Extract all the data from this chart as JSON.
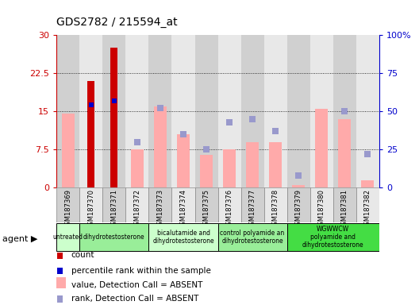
{
  "title": "GDS2782 / 215594_at",
  "samples": [
    "GSM187369",
    "GSM187370",
    "GSM187371",
    "GSM187372",
    "GSM187373",
    "GSM187374",
    "GSM187375",
    "GSM187376",
    "GSM187377",
    "GSM187378",
    "GSM187379",
    "GSM187380",
    "GSM187381",
    "GSM187382"
  ],
  "count": [
    null,
    21.0,
    27.5,
    null,
    null,
    null,
    null,
    null,
    null,
    null,
    null,
    null,
    null,
    null
  ],
  "percentile_rank": [
    null,
    54.0,
    57.0,
    null,
    null,
    null,
    null,
    null,
    null,
    null,
    null,
    null,
    null,
    null
  ],
  "value_absent": [
    14.5,
    null,
    null,
    7.5,
    16.0,
    10.5,
    6.5,
    7.5,
    9.0,
    9.0,
    0.5,
    15.5,
    13.5,
    1.5
  ],
  "rank_absent": [
    null,
    null,
    null,
    30.0,
    52.0,
    35.0,
    25.0,
    43.0,
    45.0,
    37.0,
    8.0,
    null,
    50.0,
    22.0
  ],
  "groups": [
    {
      "label": "untreated",
      "start": 0,
      "end": 1,
      "color": "#ccffcc"
    },
    {
      "label": "dihydrotestosterone",
      "start": 1,
      "end": 4,
      "color": "#99ee99"
    },
    {
      "label": "bicalutamide and\ndihydrotestosterone",
      "start": 4,
      "end": 7,
      "color": "#ccffcc"
    },
    {
      "label": "control polyamide an\ndihydrotestosterone",
      "start": 7,
      "end": 10,
      "color": "#99ee99"
    },
    {
      "label": "WGWWCW\npolyamide and\ndihydrotestosterone",
      "start": 10,
      "end": 14,
      "color": "#44dd44"
    }
  ],
  "ylim_left": [
    0,
    30
  ],
  "ylim_right": [
    0,
    100
  ],
  "yticks_left": [
    0,
    7.5,
    15,
    22.5,
    30
  ],
  "yticks_right": [
    0,
    25,
    50,
    75,
    100
  ],
  "ytick_labels_left": [
    "0",
    "7.5",
    "15",
    "22.5",
    "30"
  ],
  "ytick_labels_right": [
    "0",
    "25",
    "50",
    "75",
    "100%"
  ],
  "color_count": "#cc0000",
  "color_rank": "#0000cc",
  "color_value_absent": "#ffaaaa",
  "color_rank_absent": "#9999cc",
  "bar_width": 0.55,
  "plot_bg": "#ffffff",
  "col_bg_odd": "#d0d0d0",
  "col_bg_even": "#e8e8e8"
}
